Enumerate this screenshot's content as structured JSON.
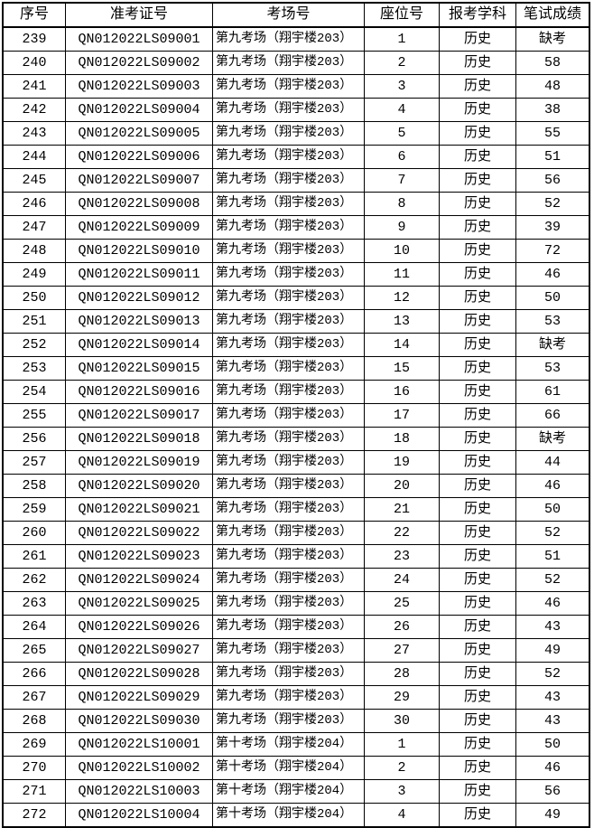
{
  "table": {
    "columns": [
      {
        "key": "index",
        "label": "序号"
      },
      {
        "key": "ticket",
        "label": "准考证号"
      },
      {
        "key": "room",
        "label": "考场号"
      },
      {
        "key": "seat",
        "label": "座位号"
      },
      {
        "key": "subject",
        "label": "报考学科"
      },
      {
        "key": "score",
        "label": "笔试成绩"
      }
    ],
    "rows": [
      [
        239,
        "QN012022LS09001",
        "第九考场（翔宇楼203）",
        1,
        "历史",
        "缺考"
      ],
      [
        240,
        "QN012022LS09002",
        "第九考场（翔宇楼203）",
        2,
        "历史",
        "58"
      ],
      [
        241,
        "QN012022LS09003",
        "第九考场（翔宇楼203）",
        3,
        "历史",
        "48"
      ],
      [
        242,
        "QN012022LS09004",
        "第九考场（翔宇楼203）",
        4,
        "历史",
        "38"
      ],
      [
        243,
        "QN012022LS09005",
        "第九考场（翔宇楼203）",
        5,
        "历史",
        "55"
      ],
      [
        244,
        "QN012022LS09006",
        "第九考场（翔宇楼203）",
        6,
        "历史",
        "51"
      ],
      [
        245,
        "QN012022LS09007",
        "第九考场（翔宇楼203）",
        7,
        "历史",
        "56"
      ],
      [
        246,
        "QN012022LS09008",
        "第九考场（翔宇楼203）",
        8,
        "历史",
        "52"
      ],
      [
        247,
        "QN012022LS09009",
        "第九考场（翔宇楼203）",
        9,
        "历史",
        "39"
      ],
      [
        248,
        "QN012022LS09010",
        "第九考场（翔宇楼203）",
        10,
        "历史",
        "72"
      ],
      [
        249,
        "QN012022LS09011",
        "第九考场（翔宇楼203）",
        11,
        "历史",
        "46"
      ],
      [
        250,
        "QN012022LS09012",
        "第九考场（翔宇楼203）",
        12,
        "历史",
        "50"
      ],
      [
        251,
        "QN012022LS09013",
        "第九考场（翔宇楼203）",
        13,
        "历史",
        "53"
      ],
      [
        252,
        "QN012022LS09014",
        "第九考场（翔宇楼203）",
        14,
        "历史",
        "缺考"
      ],
      [
        253,
        "QN012022LS09015",
        "第九考场（翔宇楼203）",
        15,
        "历史",
        "53"
      ],
      [
        254,
        "QN012022LS09016",
        "第九考场（翔宇楼203）",
        16,
        "历史",
        "61"
      ],
      [
        255,
        "QN012022LS09017",
        "第九考场（翔宇楼203）",
        17,
        "历史",
        "66"
      ],
      [
        256,
        "QN012022LS09018",
        "第九考场（翔宇楼203）",
        18,
        "历史",
        "缺考"
      ],
      [
        257,
        "QN012022LS09019",
        "第九考场（翔宇楼203）",
        19,
        "历史",
        "44"
      ],
      [
        258,
        "QN012022LS09020",
        "第九考场（翔宇楼203）",
        20,
        "历史",
        "46"
      ],
      [
        259,
        "QN012022LS09021",
        "第九考场（翔宇楼203）",
        21,
        "历史",
        "50"
      ],
      [
        260,
        "QN012022LS09022",
        "第九考场（翔宇楼203）",
        22,
        "历史",
        "52"
      ],
      [
        261,
        "QN012022LS09023",
        "第九考场（翔宇楼203）",
        23,
        "历史",
        "51"
      ],
      [
        262,
        "QN012022LS09024",
        "第九考场（翔宇楼203）",
        24,
        "历史",
        "52"
      ],
      [
        263,
        "QN012022LS09025",
        "第九考场（翔宇楼203）",
        25,
        "历史",
        "46"
      ],
      [
        264,
        "QN012022LS09026",
        "第九考场（翔宇楼203）",
        26,
        "历史",
        "43"
      ],
      [
        265,
        "QN012022LS09027",
        "第九考场（翔宇楼203）",
        27,
        "历史",
        "49"
      ],
      [
        266,
        "QN012022LS09028",
        "第九考场（翔宇楼203）",
        28,
        "历史",
        "52"
      ],
      [
        267,
        "QN012022LS09029",
        "第九考场（翔宇楼203）",
        29,
        "历史",
        "43"
      ],
      [
        268,
        "QN012022LS09030",
        "第九考场（翔宇楼203）",
        30,
        "历史",
        "43"
      ],
      [
        269,
        "QN012022LS10001",
        "第十考场（翔宇楼204）",
        1,
        "历史",
        "50"
      ],
      [
        270,
        "QN012022LS10002",
        "第十考场（翔宇楼204）",
        2,
        "历史",
        "46"
      ],
      [
        271,
        "QN012022LS10003",
        "第十考场（翔宇楼204）",
        3,
        "历史",
        "56"
      ],
      [
        272,
        "QN012022LS10004",
        "第十考场（翔宇楼204）",
        4,
        "历史",
        "49"
      ]
    ]
  },
  "colors": {
    "border": "#000000",
    "text": "#000000",
    "background": "#ffffff"
  }
}
